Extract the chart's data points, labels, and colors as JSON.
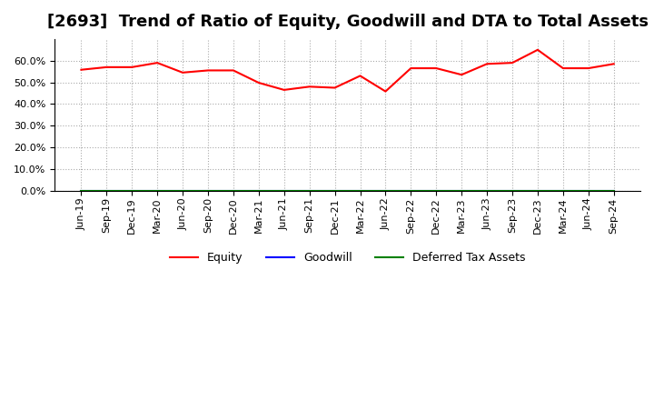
{
  "title": "[2693]  Trend of Ratio of Equity, Goodwill and DTA to Total Assets",
  "x_labels": [
    "Jun-19",
    "Sep-19",
    "Dec-19",
    "Mar-20",
    "Jun-20",
    "Sep-20",
    "Dec-20",
    "Mar-21",
    "Jun-21",
    "Sep-21",
    "Dec-21",
    "Mar-22",
    "Jun-22",
    "Sep-22",
    "Dec-22",
    "Mar-23",
    "Jun-23",
    "Sep-23",
    "Dec-23",
    "Mar-24",
    "Jun-24",
    "Sep-24"
  ],
  "equity": [
    55.8,
    57.0,
    57.0,
    59.0,
    54.5,
    55.5,
    55.5,
    49.8,
    46.5,
    48.0,
    47.5,
    53.0,
    45.8,
    56.5,
    56.5,
    53.5,
    58.5,
    59.0,
    65.0,
    56.5,
    56.5,
    58.5
  ],
  "goodwill": [
    0,
    0,
    0,
    0,
    0,
    0,
    0,
    0,
    0,
    0,
    0,
    0,
    0,
    0,
    0,
    0,
    0,
    0,
    0,
    0,
    0,
    0
  ],
  "deferred_tax": [
    0,
    0,
    0,
    0,
    0,
    0,
    0,
    0,
    0,
    0,
    0,
    0,
    0,
    0,
    0,
    0,
    0,
    0,
    0,
    0,
    0,
    0
  ],
  "equity_color": "#ff0000",
  "goodwill_color": "#0000ff",
  "dta_color": "#008000",
  "ylim": [
    0,
    70
  ],
  "yticks": [
    0,
    10,
    20,
    30,
    40,
    50,
    60
  ],
  "background_color": "#ffffff",
  "grid_color": "#aaaaaa",
  "title_fontsize": 13
}
